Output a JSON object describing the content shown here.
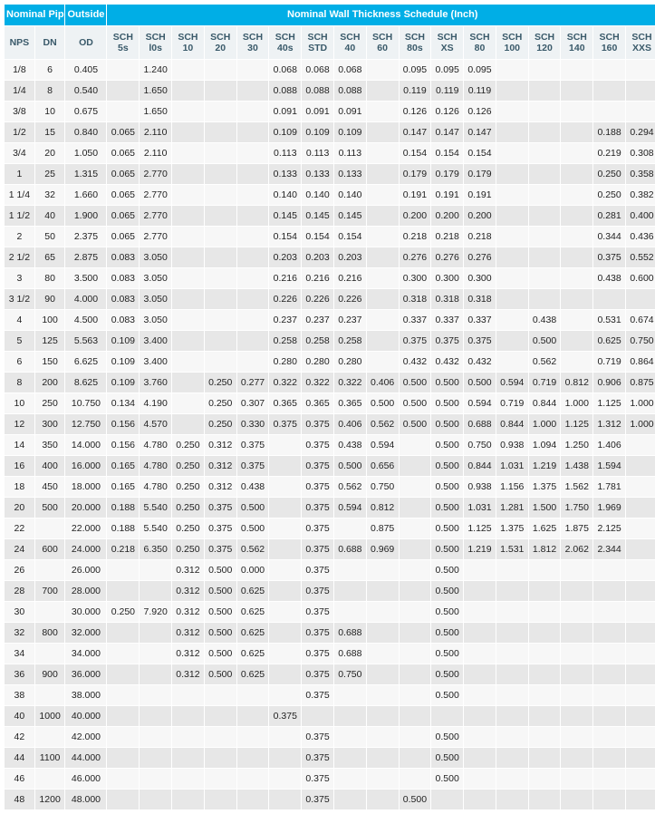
{
  "table": {
    "type": "table",
    "header": {
      "group_nominal_pipe": "Nominal Pipe Size",
      "group_od": "Outside Diameter (Inch)",
      "group_sched": "Nominal Wall Thickness Schedule (Inch)"
    },
    "subcols": [
      "NPS",
      "DN",
      "OD",
      "SCH 5s",
      "SCH l0s",
      "SCH 10",
      "SCH 20",
      "SCH 30",
      "SCH 40s",
      "SCH STD",
      "SCH 40",
      "SCH 60",
      "SCH 80s",
      "SCH XS",
      "SCH 80",
      "SCH 100",
      "SCH 120",
      "SCH 140",
      "SCH 160",
      "SCH XXS"
    ],
    "colors": {
      "header_bg": "#00aee6",
      "header_text": "#ffffff",
      "subheader_bg": "#eef2f4",
      "subheader_text": "#3a5a6a",
      "row_odd": "#f7f7f7",
      "row_even": "#e7e7e7",
      "cell_text": "#222222"
    },
    "fontsizes": {
      "header": 11,
      "subheader": 10.5,
      "cells": 10.5
    },
    "rows": [
      [
        "1/8",
        "6",
        "0.405",
        "",
        "1.240",
        "",
        "",
        "",
        "0.068",
        "0.068",
        "0.068",
        "",
        "0.095",
        "0.095",
        "0.095",
        "",
        "",
        "",
        "",
        ""
      ],
      [
        "1/4",
        "8",
        "0.540",
        "",
        "1.650",
        "",
        "",
        "",
        "0.088",
        "0.088",
        "0.088",
        "",
        "0.119",
        "0.119",
        "0.119",
        "",
        "",
        "",
        "",
        ""
      ],
      [
        "3/8",
        "10",
        "0.675",
        "",
        "1.650",
        "",
        "",
        "",
        "0.091",
        "0.091",
        "0.091",
        "",
        "0.126",
        "0.126",
        "0.126",
        "",
        "",
        "",
        "",
        ""
      ],
      [
        "1/2",
        "15",
        "0.840",
        "0.065",
        "2.110",
        "",
        "",
        "",
        "0.109",
        "0.109",
        "0.109",
        "",
        "0.147",
        "0.147",
        "0.147",
        "",
        "",
        "",
        "0.188",
        "0.294"
      ],
      [
        "3/4",
        "20",
        "1.050",
        "0.065",
        "2.110",
        "",
        "",
        "",
        "0.113",
        "0.113",
        "0.113",
        "",
        "0.154",
        "0.154",
        "0.154",
        "",
        "",
        "",
        "0.219",
        "0.308"
      ],
      [
        "1",
        "25",
        "1.315",
        "0.065",
        "2.770",
        "",
        "",
        "",
        "0.133",
        "0.133",
        "0.133",
        "",
        "0.179",
        "0.179",
        "0.179",
        "",
        "",
        "",
        "0.250",
        "0.358"
      ],
      [
        "1 1/4",
        "32",
        "1.660",
        "0.065",
        "2.770",
        "",
        "",
        "",
        "0.140",
        "0.140",
        "0.140",
        "",
        "0.191",
        "0.191",
        "0.191",
        "",
        "",
        "",
        "0.250",
        "0.382"
      ],
      [
        "1 1/2",
        "40",
        "1.900",
        "0.065",
        "2.770",
        "",
        "",
        "",
        "0.145",
        "0.145",
        "0.145",
        "",
        "0.200",
        "0.200",
        "0.200",
        "",
        "",
        "",
        "0.281",
        "0.400"
      ],
      [
        "2",
        "50",
        "2.375",
        "0.065",
        "2.770",
        "",
        "",
        "",
        "0.154",
        "0.154",
        "0.154",
        "",
        "0.218",
        "0.218",
        "0.218",
        "",
        "",
        "",
        "0.344",
        "0.436"
      ],
      [
        "2 1/2",
        "65",
        "2.875",
        "0.083",
        "3.050",
        "",
        "",
        "",
        "0.203",
        "0.203",
        "0.203",
        "",
        "0.276",
        "0.276",
        "0.276",
        "",
        "",
        "",
        "0.375",
        "0.552"
      ],
      [
        "3",
        "80",
        "3.500",
        "0.083",
        "3.050",
        "",
        "",
        "",
        "0.216",
        "0.216",
        "0.216",
        "",
        "0.300",
        "0.300",
        "0.300",
        "",
        "",
        "",
        "0.438",
        "0.600"
      ],
      [
        "3 1/2",
        "90",
        "4.000",
        "0.083",
        "3.050",
        "",
        "",
        "",
        "0.226",
        "0.226",
        "0.226",
        "",
        "0.318",
        "0.318",
        "0.318",
        "",
        "",
        "",
        "",
        ""
      ],
      [
        "4",
        "100",
        "4.500",
        "0.083",
        "3.050",
        "",
        "",
        "",
        "0.237",
        "0.237",
        "0.237",
        "",
        "0.337",
        "0.337",
        "0.337",
        "",
        "0.438",
        "",
        "0.531",
        "0.674"
      ],
      [
        "5",
        "125",
        "5.563",
        "0.109",
        "3.400",
        "",
        "",
        "",
        "0.258",
        "0.258",
        "0.258",
        "",
        "0.375",
        "0.375",
        "0.375",
        "",
        "0.500",
        "",
        "0.625",
        "0.750"
      ],
      [
        "6",
        "150",
        "6.625",
        "0.109",
        "3.400",
        "",
        "",
        "",
        "0.280",
        "0.280",
        "0.280",
        "",
        "0.432",
        "0.432",
        "0.432",
        "",
        "0.562",
        "",
        "0.719",
        "0.864"
      ],
      [
        "8",
        "200",
        "8.625",
        "0.109",
        "3.760",
        "",
        "0.250",
        "0.277",
        "0.322",
        "0.322",
        "0.322",
        "0.406",
        "0.500",
        "0.500",
        "0.500",
        "0.594",
        "0.719",
        "0.812",
        "0.906",
        "0.875"
      ],
      [
        "10",
        "250",
        "10.750",
        "0.134",
        "4.190",
        "",
        "0.250",
        "0.307",
        "0.365",
        "0.365",
        "0.365",
        "0.500",
        "0.500",
        "0.500",
        "0.594",
        "0.719",
        "0.844",
        "1.000",
        "1.125",
        "1.000"
      ],
      [
        "12",
        "300",
        "12.750",
        "0.156",
        "4.570",
        "",
        "0.250",
        "0.330",
        "0.375",
        "0.375",
        "0.406",
        "0.562",
        "0.500",
        "0.500",
        "0.688",
        "0.844",
        "1.000",
        "1.125",
        "1.312",
        "1.000"
      ],
      [
        "14",
        "350",
        "14.000",
        "0.156",
        "4.780",
        "0.250",
        "0.312",
        "0.375",
        "",
        "0.375",
        "0.438",
        "0.594",
        "",
        "0.500",
        "0.750",
        "0.938",
        "1.094",
        "1.250",
        "1.406",
        ""
      ],
      [
        "16",
        "400",
        "16.000",
        "0.165",
        "4.780",
        "0.250",
        "0.312",
        "0.375",
        "",
        "0.375",
        "0.500",
        "0.656",
        "",
        "0.500",
        "0.844",
        "1.031",
        "1.219",
        "1.438",
        "1.594",
        ""
      ],
      [
        "18",
        "450",
        "18.000",
        "0.165",
        "4.780",
        "0.250",
        "0.312",
        "0.438",
        "",
        "0.375",
        "0.562",
        "0.750",
        "",
        "0.500",
        "0.938",
        "1.156",
        "1.375",
        "1.562",
        "1.781",
        ""
      ],
      [
        "20",
        "500",
        "20.000",
        "0.188",
        "5.540",
        "0.250",
        "0.375",
        "0.500",
        "",
        "0.375",
        "0.594",
        "0.812",
        "",
        "0.500",
        "1.031",
        "1.281",
        "1.500",
        "1.750",
        "1.969",
        ""
      ],
      [
        "22",
        "",
        "22.000",
        "0.188",
        "5.540",
        "0.250",
        "0.375",
        "0.500",
        "",
        "0.375",
        "",
        "0.875",
        "",
        "0.500",
        "1.125",
        "1.375",
        "1.625",
        "1.875",
        "2.125",
        ""
      ],
      [
        "24",
        "600",
        "24.000",
        "0.218",
        "6.350",
        "0.250",
        "0.375",
        "0.562",
        "",
        "0.375",
        "0.688",
        "0.969",
        "",
        "0.500",
        "1.219",
        "1.531",
        "1.812",
        "2.062",
        "2.344",
        ""
      ],
      [
        "26",
        "",
        "26.000",
        "",
        "",
        "0.312",
        "0.500",
        "0.000",
        "",
        "0.375",
        "",
        "",
        "",
        "0.500",
        "",
        "",
        "",
        "",
        "",
        ""
      ],
      [
        "28",
        "700",
        "28.000",
        "",
        "",
        "0.312",
        "0.500",
        "0.625",
        "",
        "0.375",
        "",
        "",
        "",
        "0.500",
        "",
        "",
        "",
        "",
        "",
        ""
      ],
      [
        "30",
        "",
        "30.000",
        "0.250",
        "7.920",
        "0.312",
        "0.500",
        "0.625",
        "",
        "0.375",
        "",
        "",
        "",
        "0.500",
        "",
        "",
        "",
        "",
        "",
        ""
      ],
      [
        "32",
        "800",
        "32.000",
        "",
        "",
        "0.312",
        "0.500",
        "0.625",
        "",
        "0.375",
        "0.688",
        "",
        "",
        "0.500",
        "",
        "",
        "",
        "",
        "",
        ""
      ],
      [
        "34",
        "",
        "34.000",
        "",
        "",
        "0.312",
        "0.500",
        "0.625",
        "",
        "0.375",
        "0.688",
        "",
        "",
        "0.500",
        "",
        "",
        "",
        "",
        "",
        ""
      ],
      [
        "36",
        "900",
        "36.000",
        "",
        "",
        "0.312",
        "0.500",
        "0.625",
        "",
        "0.375",
        "0.750",
        "",
        "",
        "0.500",
        "",
        "",
        "",
        "",
        "",
        ""
      ],
      [
        "38",
        "",
        "38.000",
        "",
        "",
        "",
        "",
        "",
        "",
        "0.375",
        "",
        "",
        "",
        "0.500",
        "",
        "",
        "",
        "",
        "",
        ""
      ],
      [
        "40",
        "1000",
        "40.000",
        "",
        "",
        "",
        "",
        "",
        "0.375",
        "",
        "",
        "",
        "",
        "",
        "",
        "",
        "",
        "",
        "",
        ""
      ],
      [
        "42",
        "",
        "42.000",
        "",
        "",
        "",
        "",
        "",
        "",
        "0.375",
        "",
        "",
        "",
        "0.500",
        "",
        "",
        "",
        "",
        "",
        ""
      ],
      [
        "44",
        "1100",
        "44.000",
        "",
        "",
        "",
        "",
        "",
        "",
        "0.375",
        "",
        "",
        "",
        "0.500",
        "",
        "",
        "",
        "",
        "",
        ""
      ],
      [
        "46",
        "",
        "46.000",
        "",
        "",
        "",
        "",
        "",
        "",
        "0.375",
        "",
        "",
        "",
        "0.500",
        "",
        "",
        "",
        "",
        "",
        ""
      ],
      [
        "48",
        "1200",
        "48.000",
        "",
        "",
        "",
        "",
        "",
        "",
        "0.375",
        "",
        "",
        "0.500",
        "",
        "",
        "",
        "",
        "",
        "",
        ""
      ]
    ]
  }
}
